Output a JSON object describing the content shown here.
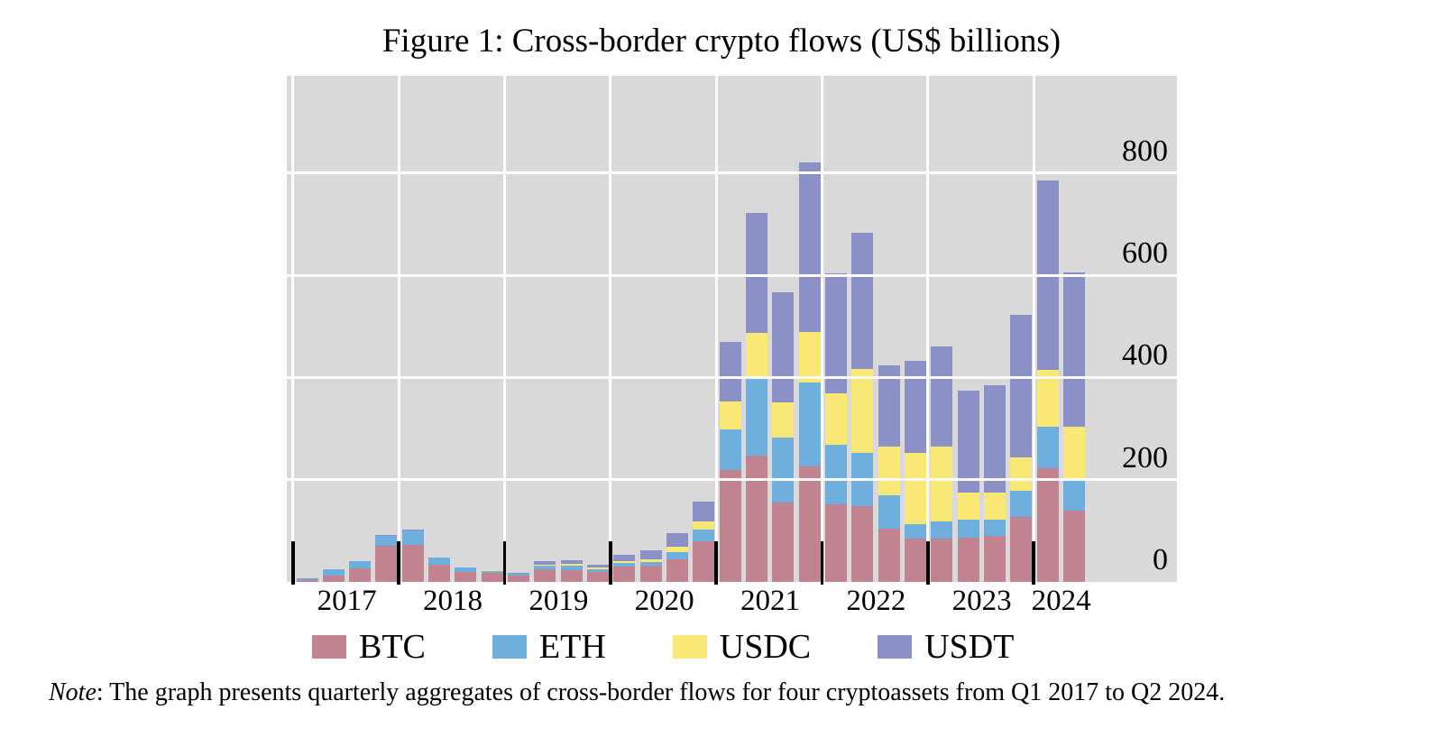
{
  "title": "Figure 1: Cross-border crypto flows (US$ billions)",
  "note": {
    "label": "Note",
    "text": ": The graph presents quarterly aggregates of cross-border flows for four cryptoassets from Q1 2017 to Q2 2024."
  },
  "legend": [
    {
      "label": "BTC",
      "color": "#c0838f"
    },
    {
      "label": "ETH",
      "color": "#6eafe0"
    },
    {
      "label": "USDC",
      "color": "#fae876"
    },
    {
      "label": "USDT",
      "color": "#8b90c6"
    }
  ],
  "panel": {
    "background": "#d9d9d9",
    "gridline_color": "#ffffff",
    "tick_color": "#000000"
  },
  "chart_data": {
    "type": "bar",
    "stacked": true,
    "title": "Figure 1: Cross-border crypto flows (US$ billions)",
    "xlabel": "",
    "ylabel": "US$ billions",
    "ylim": [
      0,
      990
    ],
    "y_ticks": [
      0,
      200,
      400,
      600,
      800
    ],
    "grid": true,
    "legend_position": "bottom",
    "x_year_labels": [
      "2017",
      "2018",
      "2019",
      "2020",
      "2021",
      "2022",
      "2023",
      "2024"
    ],
    "quarters_per_year": [
      4,
      4,
      4,
      4,
      4,
      4,
      4,
      2
    ],
    "categories": [
      "Q1 2017",
      "Q2 2017",
      "Q3 2017",
      "Q4 2017",
      "Q1 2018",
      "Q2 2018",
      "Q3 2018",
      "Q4 2018",
      "Q1 2019",
      "Q2 2019",
      "Q3 2019",
      "Q4 2019",
      "Q1 2020",
      "Q2 2020",
      "Q3 2020",
      "Q4 2020",
      "Q1 2021",
      "Q2 2021",
      "Q3 2021",
      "Q4 2021",
      "Q1 2022",
      "Q2 2022",
      "Q3 2022",
      "Q4 2022",
      "Q1 2023",
      "Q2 2023",
      "Q3 2023",
      "Q4 2023",
      "Q1 2024",
      "Q2 2024"
    ],
    "series": [
      {
        "name": "BTC",
        "color": "#c0838f",
        "values": [
          4,
          12,
          26,
          71,
          73,
          34,
          19,
          17,
          13,
          24,
          23,
          19,
          30,
          32,
          45,
          80,
          218,
          247,
          155,
          226,
          152,
          149,
          104,
          84,
          85,
          87,
          90,
          127,
          223,
          140
        ]
      },
      {
        "name": "ETH",
        "color": "#6eafe0",
        "values": [
          1.5,
          12,
          14,
          19,
          28,
          13,
          9,
          5,
          3,
          8,
          8,
          5,
          7,
          6,
          13,
          22,
          80,
          150,
          128,
          164,
          116,
          104,
          66,
          29,
          33,
          34,
          32,
          52,
          81,
          58
        ]
      },
      {
        "name": "USDC",
        "color": "#fae876",
        "values": [
          0,
          0,
          0,
          0,
          0,
          0,
          0,
          0.5,
          0.5,
          1.5,
          4,
          3.5,
          4,
          7,
          11,
          17,
          55,
          90,
          68,
          98,
          101,
          164,
          95,
          140,
          146,
          54,
          53,
          65,
          110,
          106
        ]
      },
      {
        "name": "USDT",
        "color": "#8b90c6",
        "values": [
          1,
          1,
          1,
          1.5,
          2,
          1.5,
          1,
          1,
          1.5,
          8,
          8,
          6,
          12,
          17,
          27,
          38,
          117,
          235,
          215,
          333,
          235,
          266,
          158,
          180,
          196,
          200,
          209,
          279,
          372,
          301
        ]
      }
    ]
  }
}
